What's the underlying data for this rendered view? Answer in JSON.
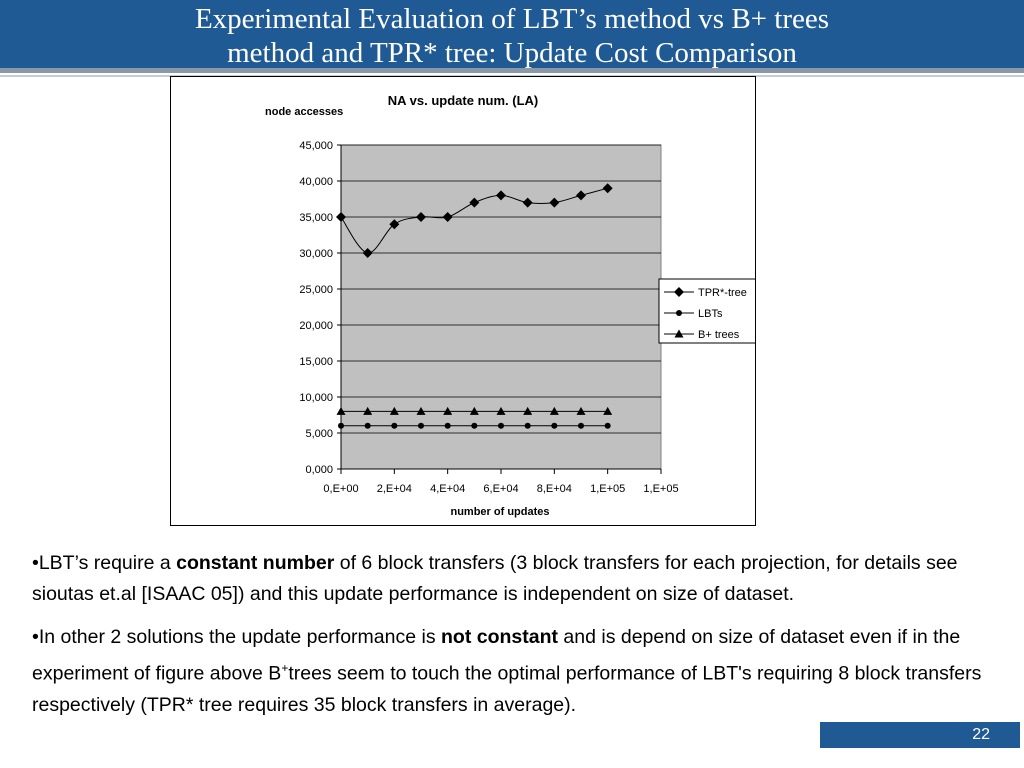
{
  "slide": {
    "title_line1": "Experimental Evaluation of LBT’s method vs B+ trees",
    "title_line2": "method and TPR* tree: Update Cost Comparison",
    "page_number": "22",
    "accent_color": "#1f5a94"
  },
  "bullets": [
    {
      "before": "•LBT’s require a ",
      "bold": "constant number",
      "after": " of 6 block transfers (3 block transfers for each projection, for details see sioutas et.al [ISAAC 05]) and this update performance is independent on size of dataset."
    },
    {
      "before": "•In other 2 solutions the update performance is ",
      "bold": "not constant",
      "mid": " and is depend on size of dataset even if in the experiment of figure above B",
      "sup": "+",
      "after": "trees seem to touch the optimal performance of LBT's requiring 8 block transfers respectively (TPR* tree requires 35 block transfers in average)."
    }
  ],
  "chart_data": {
    "type": "line",
    "title": "NA vs. update num. (LA)",
    "xlabel": "number of updates",
    "ylabel": "node accesses",
    "x": [
      0,
      10000,
      20000,
      30000,
      40000,
      50000,
      60000,
      70000,
      80000,
      90000,
      100000
    ],
    "xlim": [
      0,
      120000
    ],
    "ylim": [
      0,
      45000
    ],
    "y_ticks": [
      "0,000",
      "5,000",
      "10,000",
      "15,000",
      "20,000",
      "25,000",
      "30,000",
      "35,000",
      "40,000",
      "45,000"
    ],
    "x_ticks": [
      "0,E+00",
      "2,E+04",
      "4,E+04",
      "6,E+04",
      "8,E+04",
      "1,E+05",
      "1,E+05"
    ],
    "plot_background": "#c0c0c0",
    "grid": "horizontal",
    "legend_position": "right",
    "series": [
      {
        "name": "TPR*-tree",
        "marker": "diamond",
        "values": [
          35000,
          30000,
          34000,
          35000,
          35000,
          37000,
          38000,
          37000,
          37000,
          38000,
          39000
        ]
      },
      {
        "name": "LBTs",
        "marker": "circle",
        "values": [
          6000,
          6000,
          6000,
          6000,
          6000,
          6000,
          6000,
          6000,
          6000,
          6000,
          6000
        ]
      },
      {
        "name": "B+ trees",
        "marker": "triangle",
        "values": [
          8000,
          8000,
          8000,
          8000,
          8000,
          8000,
          8000,
          8000,
          8000,
          8000,
          8000
        ]
      }
    ]
  }
}
